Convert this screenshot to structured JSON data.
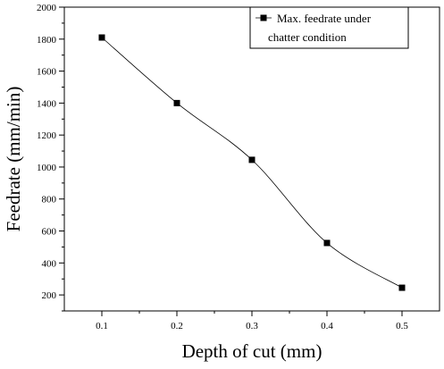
{
  "chart_data": {
    "type": "line",
    "title": "",
    "xlabel": "Depth of cut (mm)",
    "ylabel": "Feedrate (mm/min)",
    "xlim": [
      0.05,
      0.55
    ],
    "ylim": [
      100,
      2000
    ],
    "xticks": [
      0.1,
      0.2,
      0.3,
      0.4,
      0.5
    ],
    "xtick_labels": [
      "0.1",
      "0.2",
      "0.3",
      "0.4",
      "0.5"
    ],
    "yticks": [
      200,
      400,
      600,
      800,
      1000,
      1200,
      1400,
      1600,
      1800,
      2000
    ],
    "ytick_labels": [
      "200",
      "400",
      "600",
      "800",
      "1000",
      "1200",
      "1400",
      "1600",
      "1800",
      "2000"
    ],
    "grid": false,
    "legend_position": "top-right",
    "series": [
      {
        "name": "Max. feedrate under chatter condition",
        "legend_lines": [
          "Max. feedrate under",
          "chatter condition"
        ],
        "x": [
          0.1,
          0.2,
          0.3,
          0.4,
          0.5
        ],
        "y": [
          1810,
          1400,
          1045,
          525,
          245
        ],
        "marker": "square",
        "line": "smooth",
        "color": "#000000"
      }
    ]
  }
}
